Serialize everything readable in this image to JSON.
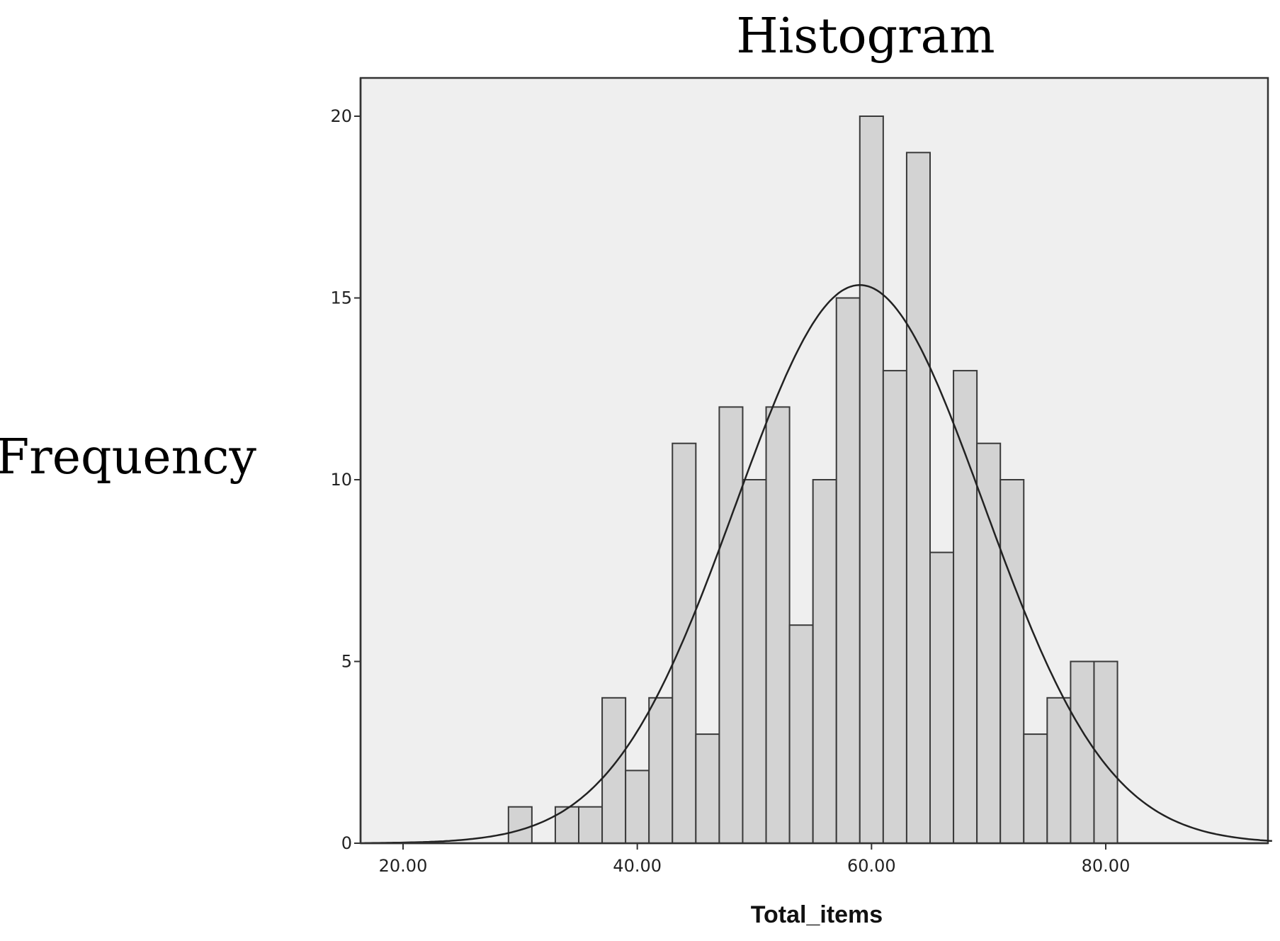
{
  "chart_data": {
    "type": "bar",
    "title": "Histogram",
    "xlabel": "Total_items",
    "ylabel": "Frequency",
    "xlim": [
      16.7,
      94.3
    ],
    "ylim": [
      0,
      20
    ],
    "grid": false,
    "background_color": "#efefef",
    "bar_color": "#d3d3d3",
    "edge_color": "#3a3a3a",
    "x_ticks": [
      {
        "value": 20,
        "label": "20.00"
      },
      {
        "value": 40,
        "label": "40.00"
      },
      {
        "value": 60,
        "label": "60.00"
      },
      {
        "value": 80,
        "label": "80.00"
      }
    ],
    "y_ticks": [
      {
        "value": 0,
        "label": "0"
      },
      {
        "value": 5,
        "label": "5"
      },
      {
        "value": 10,
        "label": "10"
      },
      {
        "value": 15,
        "label": "15"
      },
      {
        "value": 20,
        "label": "20"
      }
    ],
    "bin_width": 2,
    "bins": [
      {
        "x0": 29,
        "x1": 31,
        "count": 1
      },
      {
        "x0": 33,
        "x1": 35,
        "count": 1
      },
      {
        "x0": 35,
        "x1": 37,
        "count": 1
      },
      {
        "x0": 37,
        "x1": 39,
        "count": 4
      },
      {
        "x0": 39,
        "x1": 41,
        "count": 2
      },
      {
        "x0": 41,
        "x1": 43,
        "count": 4
      },
      {
        "x0": 43,
        "x1": 45,
        "count": 11
      },
      {
        "x0": 45,
        "x1": 47,
        "count": 3
      },
      {
        "x0": 47,
        "x1": 49,
        "count": 12
      },
      {
        "x0": 49,
        "x1": 51,
        "count": 10
      },
      {
        "x0": 51,
        "x1": 53,
        "count": 12
      },
      {
        "x0": 53,
        "x1": 55,
        "count": 6
      },
      {
        "x0": 55,
        "x1": 57,
        "count": 10
      },
      {
        "x0": 57,
        "x1": 59,
        "count": 15
      },
      {
        "x0": 59,
        "x1": 61,
        "count": 20
      },
      {
        "x0": 61,
        "x1": 63,
        "count": 13
      },
      {
        "x0": 63,
        "x1": 65,
        "count": 19
      },
      {
        "x0": 65,
        "x1": 67,
        "count": 8
      },
      {
        "x0": 67,
        "x1": 69,
        "count": 13
      },
      {
        "x0": 69,
        "x1": 71,
        "count": 11
      },
      {
        "x0": 71,
        "x1": 73,
        "count": 10
      },
      {
        "x0": 73,
        "x1": 75,
        "count": 3
      },
      {
        "x0": 75,
        "x1": 77,
        "count": 4
      },
      {
        "x0": 77,
        "x1": 79,
        "count": 5
      },
      {
        "x0": 79,
        "x1": 81,
        "count": 5
      }
    ],
    "normal_curve": {
      "mean": 59,
      "sd": 10.6,
      "n": 204
    }
  }
}
